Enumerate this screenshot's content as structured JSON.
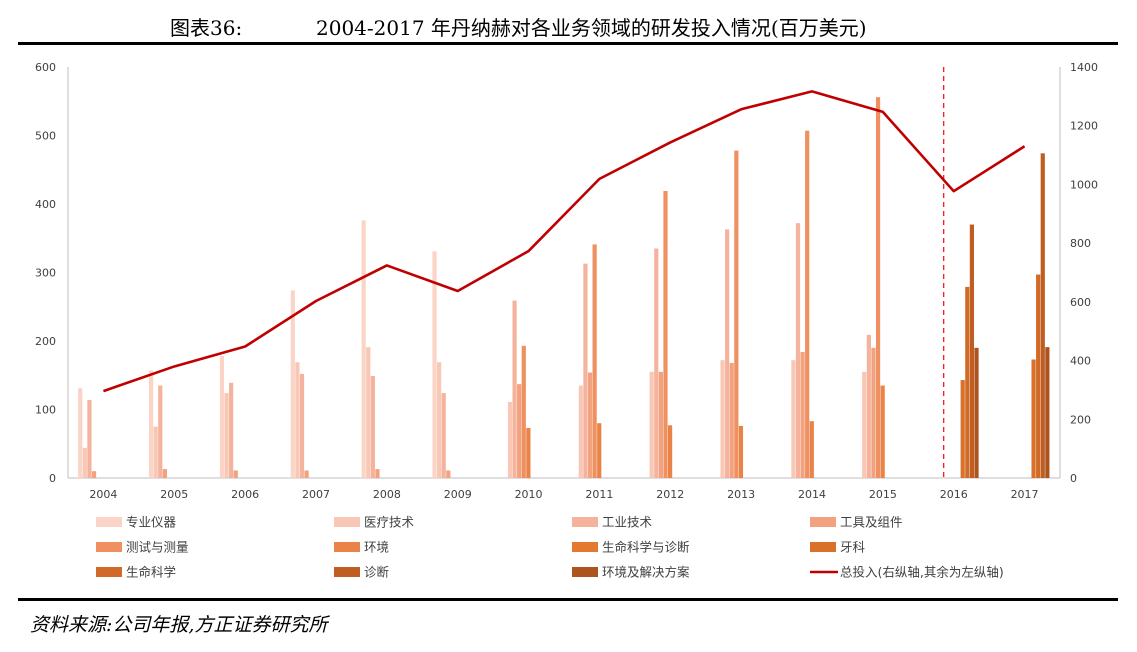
{
  "header": {
    "figure_label": "图表36:",
    "title": "2004-2017 年丹纳赫对各业务领域的研发投入情况(百万美元)"
  },
  "footer": {
    "source": "资料来源:公司年报,方正证券研究所"
  },
  "chart_data": {
    "type": "bar",
    "categories": [
      "2004",
      "2005",
      "2006",
      "2007",
      "2008",
      "2009",
      "2010",
      "2011",
      "2012",
      "2013",
      "2014",
      "2015",
      "2016",
      "2017"
    ],
    "left_axis": {
      "ylim": [
        0,
        600
      ],
      "ticks": [
        "0",
        "100",
        "200",
        "300",
        "400",
        "500",
        "600"
      ]
    },
    "right_axis": {
      "ylim": [
        0,
        1400
      ],
      "ticks": [
        "0",
        "200",
        "400",
        "600",
        "800",
        "1000",
        "1200",
        "1400"
      ]
    },
    "series": [
      {
        "name": "专业仪器",
        "color": "#fad4c6",
        "axis": "left",
        "values": [
          131,
          157,
          178,
          274,
          376,
          331,
          null,
          null,
          null,
          null,
          null,
          null,
          null,
          null
        ]
      },
      {
        "name": "医疗技术",
        "color": "#f8c7b5",
        "axis": "left",
        "values": [
          44,
          75,
          124,
          169,
          191,
          169,
          111,
          135,
          155,
          172,
          172,
          155,
          null,
          null
        ]
      },
      {
        "name": "工业技术",
        "color": "#f5b39d",
        "axis": "left",
        "values": [
          114,
          135,
          139,
          152,
          149,
          124,
          259,
          313,
          335,
          363,
          372,
          209,
          null,
          null
        ]
      },
      {
        "name": "工具及组件",
        "color": "#f2a27f",
        "axis": "left",
        "values": [
          10,
          13,
          11,
          11,
          13,
          11,
          137,
          154,
          155,
          168,
          184,
          190,
          null,
          null
        ]
      },
      {
        "name": "测试与测量",
        "color": "#ef9060",
        "axis": "left",
        "values": [
          null,
          null,
          null,
          null,
          null,
          null,
          193,
          341,
          419,
          478,
          507,
          556,
          null,
          null
        ]
      },
      {
        "name": "环境",
        "color": "#ea8347",
        "axis": "left",
        "values": [
          null,
          null,
          null,
          null,
          null,
          null,
          73,
          80,
          77,
          76,
          83,
          135,
          null,
          null
        ]
      },
      {
        "name": "生命科学与诊断",
        "color": "#e4782f",
        "axis": "left",
        "values": [
          null,
          null,
          null,
          null,
          null,
          null,
          null,
          null,
          null,
          null,
          null,
          null,
          null,
          null
        ]
      },
      {
        "name": "牙科",
        "color": "#d9712a",
        "axis": "left",
        "values": [
          null,
          null,
          null,
          null,
          null,
          null,
          null,
          null,
          null,
          null,
          null,
          null,
          143,
          173
        ]
      },
      {
        "name": "生命科学",
        "color": "#cf6a28",
        "axis": "left",
        "values": [
          null,
          null,
          null,
          null,
          null,
          null,
          null,
          null,
          null,
          null,
          null,
          null,
          279,
          297
        ]
      },
      {
        "name": "诊断",
        "color": "#c05e22",
        "axis": "left",
        "values": [
          null,
          null,
          null,
          null,
          null,
          null,
          null,
          null,
          null,
          null,
          null,
          null,
          370,
          474
        ]
      },
      {
        "name": "环境及解决方案",
        "color": "#ad531d",
        "axis": "left",
        "values": [
          null,
          null,
          null,
          null,
          null,
          null,
          null,
          null,
          null,
          null,
          null,
          null,
          190,
          191
        ]
      }
    ],
    "line_series": {
      "name": "总投入(右纵轴,其余为左纵轴)",
      "color": "#c00000",
      "axis": "right",
      "values": [
        296,
        380,
        448,
        603,
        724,
        637,
        773,
        1019,
        1143,
        1256,
        1317,
        1247,
        977,
        1130
      ]
    },
    "annotation": "dashed vertical divider between 2015 and 2016",
    "divider_color": "#ff0000",
    "grid": false,
    "legend_position": "bottom"
  }
}
